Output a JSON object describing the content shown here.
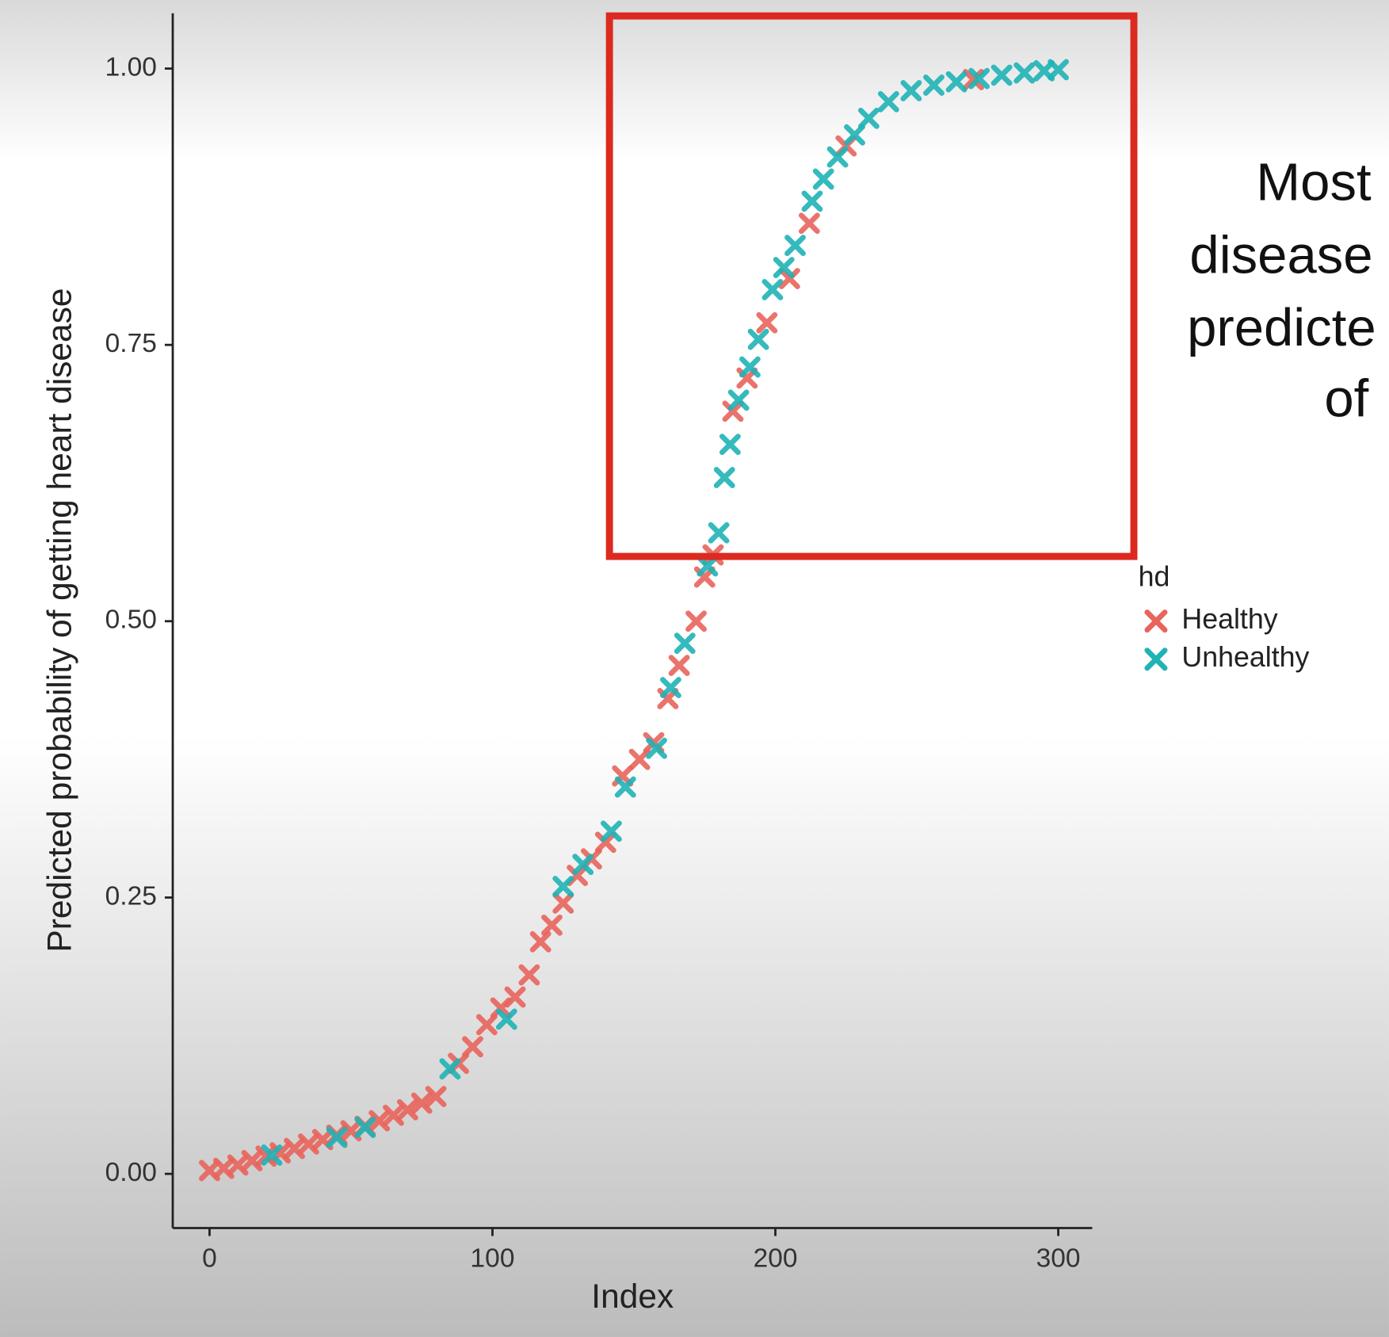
{
  "chart_data": {
    "type": "scatter",
    "x_label": "Index",
    "y_label": "Predicted probability of getting heart disease",
    "legend_title": "hd",
    "annotation_lines": [
      "Most",
      "disease",
      "predicte",
      "of"
    ],
    "xlim": [
      -13,
      312
    ],
    "ylim": [
      -0.049,
      1.05
    ],
    "xticks": [
      0,
      100,
      200,
      300
    ],
    "yticks": [
      {
        "value": 0,
        "label": "0.00"
      },
      {
        "value": 0.25,
        "label": "0.25"
      },
      {
        "value": 0.5,
        "label": "0.50"
      },
      {
        "value": 0.75,
        "label": "0.75"
      },
      {
        "value": 1,
        "label": "1.00"
      }
    ],
    "marker": "x",
    "series": [
      {
        "name": "Healthy",
        "color": "#e8645c",
        "x": [
          0,
          5,
          10,
          15,
          20,
          25,
          30,
          35,
          40,
          45,
          50,
          55,
          60,
          65,
          70,
          75,
          80,
          88,
          93,
          98,
          103,
          108,
          113,
          117,
          121,
          125,
          130,
          135,
          140,
          146,
          152,
          157,
          162,
          166,
          172,
          175,
          178,
          185,
          190,
          197,
          205,
          212,
          225,
          270
        ],
        "values": [
          0.003,
          0.005,
          0.008,
          0.012,
          0.016,
          0.019,
          0.023,
          0.027,
          0.031,
          0.035,
          0.039,
          0.043,
          0.048,
          0.053,
          0.058,
          0.064,
          0.07,
          0.1,
          0.115,
          0.135,
          0.15,
          0.16,
          0.18,
          0.21,
          0.225,
          0.245,
          0.27,
          0.285,
          0.3,
          0.36,
          0.375,
          0.39,
          0.43,
          0.46,
          0.5,
          0.54,
          0.56,
          0.69,
          0.72,
          0.77,
          0.81,
          0.86,
          0.93,
          0.99
        ]
      },
      {
        "name": "Unhealthy",
        "color": "#1fb3b6",
        "x": [
          22,
          45,
          55,
          85,
          105,
          125,
          132,
          142,
          147,
          158,
          163,
          168,
          176,
          180,
          182,
          184,
          187,
          191,
          194,
          199,
          203,
          207,
          213,
          217,
          222,
          228,
          233,
          240,
          248,
          256,
          264,
          272,
          280,
          288,
          295,
          300
        ],
        "values": [
          0.017,
          0.033,
          0.042,
          0.095,
          0.14,
          0.26,
          0.28,
          0.31,
          0.35,
          0.385,
          0.44,
          0.48,
          0.55,
          0.58,
          0.63,
          0.66,
          0.7,
          0.73,
          0.755,
          0.8,
          0.82,
          0.84,
          0.88,
          0.9,
          0.92,
          0.94,
          0.955,
          0.97,
          0.98,
          0.985,
          0.988,
          0.991,
          0.994,
          0.996,
          0.998,
          0.999
        ]
      }
    ]
  }
}
